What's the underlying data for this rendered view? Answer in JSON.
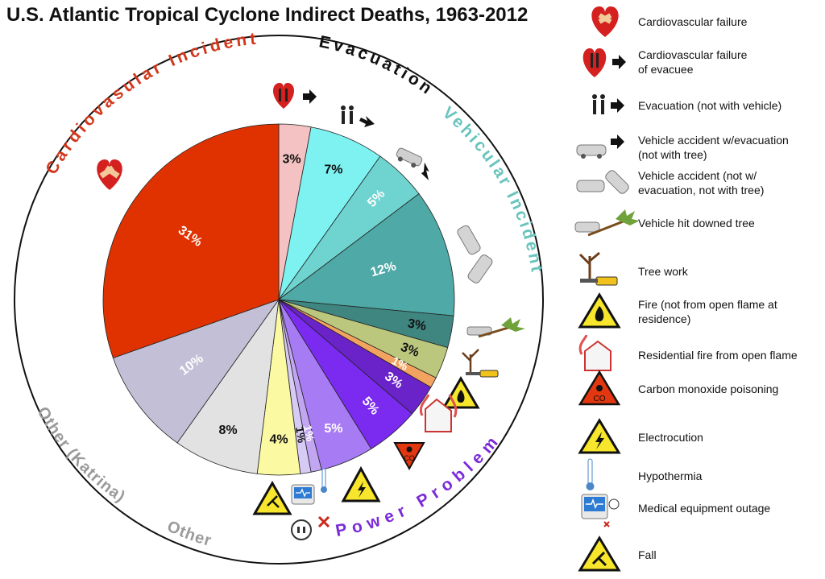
{
  "chart_data": {
    "type": "pie",
    "title": "U.S. Atlantic Tropical Cyclone Indirect Deaths, 1963-2012",
    "slices": [
      {
        "label": "3%",
        "value": 3,
        "category": "Cardiovascular failure of evacuee",
        "color": "#f4c2c2",
        "label_color": "#111111"
      },
      {
        "label": "7%",
        "value": 7,
        "category": "Evacuation (not with vehicle)",
        "color": "#7ef1f1",
        "label_color": "#111111"
      },
      {
        "label": "5%",
        "value": 5,
        "category": "Vehicle accident w/evacuation (not with tree)",
        "color": "#6fd3cf",
        "label_color": "#ffffff"
      },
      {
        "label": "12%",
        "value": 12,
        "category": "Vehicle accident (not w/ evacuation, not with tree)",
        "color": "#4fa9a6",
        "label_color": "#ffffff"
      },
      {
        "label": "3%",
        "value": 3,
        "category": "Vehicle hit downed tree",
        "color": "#3f8580",
        "label_color": "#111111"
      },
      {
        "label": "3%",
        "value": 3,
        "category": "Tree work",
        "color": "#bcc77e",
        "label_color": "#111111"
      },
      {
        "label": "1%",
        "value": 1,
        "category": "Fire (not from open flame at residence)",
        "color": "#f2a35f",
        "label_color": "#ffffff"
      },
      {
        "label": "3%",
        "value": 3,
        "category": "Residential fire from open flame",
        "color": "#6a23c9",
        "label_color": "#ffffff"
      },
      {
        "label": "5%",
        "value": 5,
        "category": "Carbon monoxide poisoning",
        "color": "#7b2bf0",
        "label_color": "#ffffff"
      },
      {
        "label": "5%",
        "value": 5,
        "category": "Electrocution",
        "color": "#a77bf4",
        "label_color": "#ffffff"
      },
      {
        "label": "1%",
        "value": 1,
        "category": "Hypothermia",
        "color": "#c2a6f2",
        "label_color": "#ffffff"
      },
      {
        "label": "1%",
        "value": 1,
        "category": "Medical equipment outage",
        "color": "#d6cbf4",
        "label_color": "#111111"
      },
      {
        "label": "4%",
        "value": 4,
        "category": "Fall",
        "color": "#fbfaa3",
        "label_color": "#111111"
      },
      {
        "label": "8%",
        "value": 8,
        "category": "Other",
        "color": "#e2e2e2",
        "label_color": "#111111"
      },
      {
        "label": "10%",
        "value": 10,
        "category": "Other (Katrina)",
        "color": "#c3bfd6",
        "label_color": "#ffffff"
      },
      {
        "label": "31%",
        "value": 31,
        "category": "Cardiovascular failure",
        "color": "#e03200",
        "label_color": "#ffffff"
      }
    ],
    "groups": [
      {
        "label": "Cardiovasular Incident",
        "color": "#d2371b"
      },
      {
        "label": "Evacuation",
        "color": "#111111"
      },
      {
        "label": "Vehicular Incident",
        "color": "#69c4be"
      },
      {
        "label": "Power Problem",
        "color": "#7b2bd8"
      },
      {
        "label": "Other",
        "color": "#9a9a9a"
      },
      {
        "label": "Other (Katrina)",
        "color": "#9a9a9a"
      }
    ],
    "legend": {
      "position": "right",
      "items": [
        {
          "label": "Cardiovascular failure",
          "icon": "heart-bandage-icon"
        },
        {
          "label": "Cardiovascular failure\nof evacuee",
          "icon": "heart-evacuee-icon"
        },
        {
          "label": "Evacuation (not with vehicle)",
          "icon": "evacuation-walkers-icon"
        },
        {
          "label": "Vehicle accident w/evacuation\n(not with tree)",
          "icon": "car-evacuation-icon"
        },
        {
          "label": "Vehicle accident (not w/\nevacuation, not with tree)",
          "icon": "car-crash-icon"
        },
        {
          "label": "Vehicle hit downed tree",
          "icon": "car-tree-icon"
        },
        {
          "label": "Tree work",
          "icon": "chainsaw-tree-icon"
        },
        {
          "label": "Fire (not from open flame at\nresidence)",
          "icon": "fire-warning-icon"
        },
        {
          "label": "Residential fire from open flame",
          "icon": "house-fire-icon"
        },
        {
          "label": "Carbon monoxide poisoning",
          "icon": "carbon-monoxide-icon"
        },
        {
          "label": "Electrocution",
          "icon": "electrocution-warning-icon"
        },
        {
          "label": "Hypothermia",
          "icon": "thermometer-icon"
        },
        {
          "label": "Medical equipment outage",
          "icon": "medical-monitor-icon"
        },
        {
          "label": "Fall",
          "icon": "fall-warning-icon"
        }
      ]
    },
    "colors": {
      "background": "#ffffff",
      "outline": "#111111"
    }
  }
}
